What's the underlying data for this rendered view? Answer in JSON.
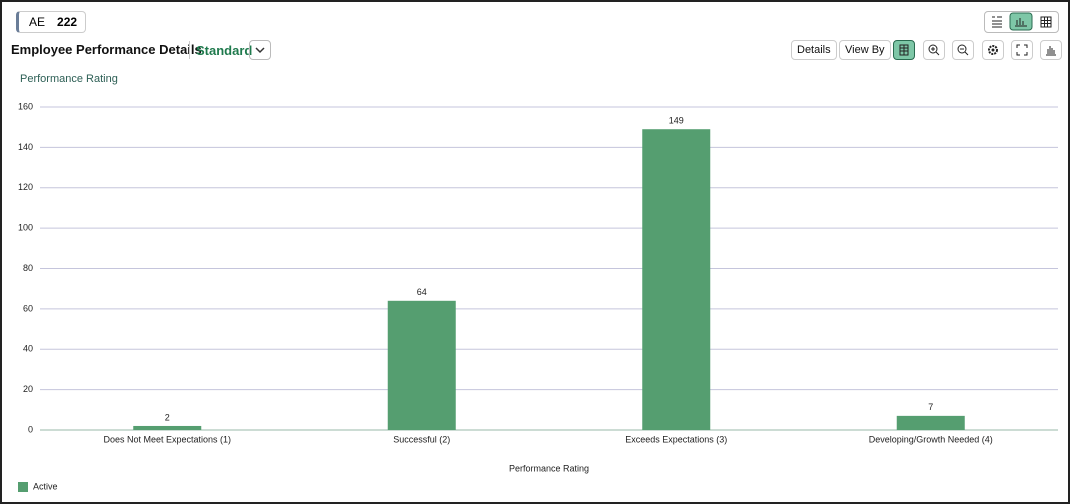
{
  "header": {
    "badge": {
      "label": "AE",
      "count": "222"
    },
    "title": "Employee Performance Details",
    "variant": "Standard",
    "buttons": [
      "Details",
      "View By"
    ]
  },
  "chart_data": {
    "type": "bar",
    "y_label": "Performance Rating",
    "x_label": "Performance Rating",
    "categories": [
      "Does Not Meet Expectations (1)",
      "Successful (2)",
      "Exceeds Expectations (3)",
      "Developing/Growth Needed (4)"
    ],
    "series": [
      {
        "name": "Active",
        "color": "#559e70",
        "values": [
          2,
          64,
          149,
          7
        ]
      }
    ],
    "ylim": [
      0,
      160
    ],
    "yticks": [
      0,
      20,
      40,
      60,
      80,
      100,
      120,
      140,
      160
    ],
    "grid": true,
    "legend": "bottom-left"
  }
}
